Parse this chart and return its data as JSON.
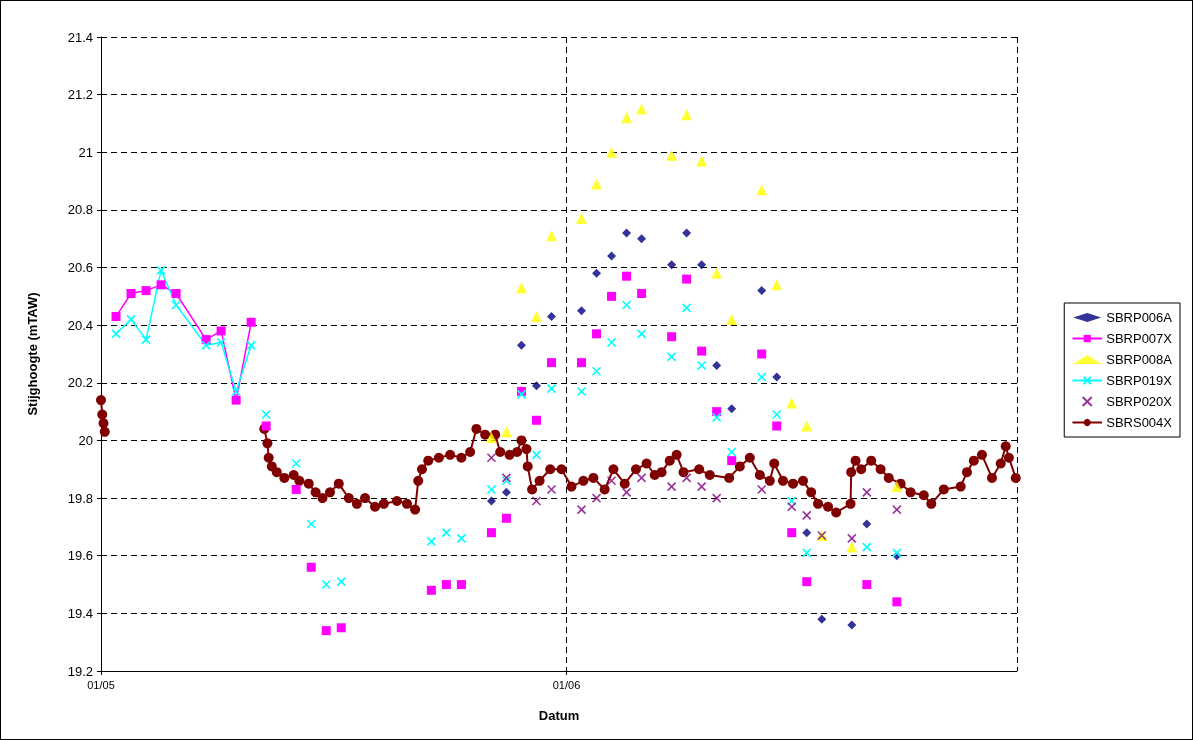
{
  "chart_data": {
    "type": "line",
    "xlabel": "Datum",
    "ylabel": "Stijghoogte (mTAW)",
    "xlim": [
      "--05-01",
      "--07-01"
    ],
    "xticks": [
      {
        "value": "--05-01",
        "label": "01/05"
      },
      {
        "value": "--06-01",
        "label": "01/06"
      }
    ],
    "ylim": [
      19.2,
      21.4
    ],
    "yticks": [
      19.2,
      19.4,
      19.6,
      19.8,
      20,
      20.2,
      20.4,
      20.6,
      20.8,
      21,
      21.2,
      21.4
    ],
    "grid": true,
    "legend": "right",
    "series": [
      {
        "name": "SBRP006A",
        "type": "scatter",
        "marker": "diamond",
        "color": "#000080",
        "x": [
          "--05-27",
          "--05-28",
          "--05-29",
          "--05-30",
          "--05-31",
          "--06-02",
          "--06-03",
          "--06-04",
          "--06-05",
          "--06-06",
          "--06-08",
          "--06-09",
          "--06-10",
          "--06-11",
          "--06-12",
          "--06-14",
          "--06-15",
          "--06-17",
          "--06-18",
          "--06-20",
          "--06-21",
          "--06-23"
        ],
        "values": [
          19.79,
          19.82,
          20.33,
          20.19,
          20.43,
          20.45,
          20.58,
          20.64,
          20.72,
          20.7,
          20.61,
          20.72,
          20.61,
          20.26,
          20.11,
          20.52,
          20.22,
          19.68,
          19.38,
          19.36,
          19.71,
          19.6
        ]
      },
      {
        "name": "SBRP007X",
        "marker": "square",
        "color": "#ff00ff",
        "x": [
          "--05-02",
          "--05-03",
          "--05-04",
          "--05-05",
          "--05-06",
          "--05-08",
          "--05-09",
          "--05-10",
          "--05-11",
          "--05-11T12:00",
          "--05-12",
          "--05-13",
          "--05-14",
          "--05-14T12:00",
          "--05-15",
          "--05-15T12:00",
          "--05-16",
          "--05-16T12:00",
          "--05-17",
          "--05-20",
          "--05-23",
          "--05-23T12:00",
          "--05-24",
          "--05-24T12:00",
          "--05-25",
          "--05-26",
          "--05-27",
          "--05-27T12:00",
          "--05-28",
          "--05-28T12:00",
          "--05-29",
          "--05-29T12:00",
          "--05-30",
          "--05-30T12:00",
          "--05-31",
          "--06-01",
          "--06-02",
          "--06-02T12:00",
          "--06-03",
          "--06-03T12:00",
          "--06-04",
          "--06-04T12:00",
          "--06-05",
          "--06-05T12:00",
          "--06-06",
          "--06-07",
          "--06-08",
          "--06-08T12:00",
          "--06-09",
          "--06-09T12:00",
          "--06-10",
          "--06-10T12:00",
          "--06-11",
          "--06-11T12:00",
          "--06-12",
          "--06-13",
          "--06-14",
          "--06-14T12:00",
          "--06-15",
          "--06-15T12:00",
          "--06-16",
          "--06-16T12:00",
          "--06-17",
          "--06-19",
          "--06-21",
          "--06-22",
          "--06-23"
        ],
        "values": [
          20.43,
          20.51,
          20.52,
          20.54,
          20.51,
          20.35,
          20.38,
          20.14,
          20.41,
          null,
          20.05,
          null,
          19.83,
          null,
          19.56,
          null,
          19.34,
          null,
          19.35,
          null,
          19.48,
          null,
          19.5,
          null,
          19.5,
          null,
          19.68,
          null,
          19.73,
          null,
          20.17,
          null,
          20.07,
          null,
          20.27,
          null,
          20.27,
          null,
          20.37,
          null,
          20.5,
          null,
          20.57,
          null,
          20.51,
          null,
          20.36,
          null,
          20.56,
          null,
          20.31,
          null,
          20.1,
          null,
          19.93,
          null,
          20.3,
          null,
          20.05,
          null,
          19.68,
          null,
          19.51,
          null,
          19.5,
          null,
          19.44
        ]
      },
      {
        "name": "SBRP008A",
        "type": "scatter",
        "marker": "triangle",
        "color": "#ffff00",
        "x": [
          "--05-27",
          "--05-28",
          "--05-29",
          "--05-30",
          "--05-31",
          "--06-02",
          "--06-03",
          "--06-04",
          "--06-05",
          "--06-06",
          "--06-08",
          "--06-09",
          "--06-10",
          "--06-11",
          "--06-12",
          "--06-14",
          "--06-15",
          "--06-16",
          "--06-17",
          "--06-18",
          "--06-20",
          "--06-23"
        ],
        "values": [
          20.01,
          20.03,
          20.53,
          20.43,
          20.71,
          20.77,
          20.89,
          21.0,
          21.12,
          21.15,
          20.99,
          21.13,
          20.97,
          20.58,
          20.42,
          20.87,
          20.54,
          20.13,
          20.05,
          19.67,
          19.63,
          19.84
        ]
      },
      {
        "name": "SBRP019X",
        "marker": "cross",
        "color": "#00ffff",
        "x": [
          "--05-02",
          "--05-03",
          "--05-04",
          "--05-05",
          "--05-06",
          "--05-08",
          "--05-09",
          "--05-10",
          "--05-11",
          "--05-11T12:00",
          "--05-12",
          "--05-13",
          "--05-14",
          "--05-14T12:00",
          "--05-15",
          "--05-15T12:00",
          "--05-16",
          "--05-16T12:00",
          "--05-17",
          "--05-20",
          "--05-23",
          "--05-23T12:00",
          "--05-24",
          "--05-24T12:00",
          "--05-25",
          "--05-26",
          "--05-27",
          "--05-27T12:00",
          "--05-28",
          "--05-28T12:00",
          "--05-29",
          "--05-29T12:00",
          "--05-30",
          "--05-30T12:00",
          "--05-31",
          "--06-01",
          "--06-02",
          "--06-02T12:00",
          "--06-03",
          "--06-03T12:00",
          "--06-04",
          "--06-04T12:00",
          "--06-05",
          "--06-05T12:00",
          "--06-06",
          "--06-07",
          "--06-08",
          "--06-08T12:00",
          "--06-09",
          "--06-09T12:00",
          "--06-10",
          "--06-10T12:00",
          "--06-11",
          "--06-11T12:00",
          "--06-12",
          "--06-13",
          "--06-14",
          "--06-14T12:00",
          "--06-15",
          "--06-15T12:00",
          "--06-16",
          "--06-16T12:00",
          "--06-17",
          "--06-19",
          "--06-21",
          "--06-22",
          "--06-23"
        ],
        "values": [
          20.37,
          20.42,
          20.35,
          20.59,
          20.47,
          20.33,
          20.34,
          20.17,
          20.33,
          null,
          20.09,
          null,
          19.92,
          null,
          19.71,
          null,
          19.5,
          null,
          19.51,
          null,
          19.65,
          null,
          19.68,
          null,
          19.66,
          null,
          19.83,
          null,
          19.86,
          null,
          20.16,
          null,
          19.95,
          null,
          20.18,
          null,
          20.17,
          null,
          20.24,
          null,
          20.34,
          null,
          20.47,
          null,
          20.37,
          null,
          20.29,
          null,
          20.46,
          null,
          20.26,
          null,
          20.08,
          null,
          19.96,
          null,
          20.22,
          null,
          20.09,
          null,
          19.79,
          null,
          19.61,
          null,
          19.63,
          null,
          19.61
        ]
      },
      {
        "name": "SBRP020X",
        "type": "scatter",
        "marker": "cross",
        "color": "#800080",
        "x": [
          "--05-27",
          "--05-28",
          "--05-30",
          "--05-31",
          "--06-02",
          "--06-03",
          "--06-04",
          "--06-05",
          "--06-06",
          "--06-08",
          "--06-09",
          "--06-10",
          "--06-11",
          "--06-14",
          "--06-16",
          "--06-17",
          "--06-18",
          "--06-20",
          "--06-21",
          "--06-23"
        ],
        "values": [
          19.94,
          19.87,
          19.79,
          19.83,
          19.76,
          19.8,
          19.86,
          19.82,
          19.87,
          19.84,
          19.87,
          19.84,
          19.8,
          19.83,
          19.77,
          19.74,
          19.67,
          19.66,
          19.82,
          19.76
        ]
      },
      {
        "name": "SBRS004X",
        "marker": "circle",
        "color": "#800000",
        "x": [
          "--05-01T00:00",
          "--05-01T02:00",
          "--05-01T04:00",
          "--05-01T06:00",
          "--05-06T00:00",
          "--05-11T21:00",
          "--05-12T02:00",
          "--05-12T04:00",
          "--05-12T09:00",
          "--05-12T17:00",
          "--05-13T05:00",
          "--05-13T20:00",
          "--05-14T05:00",
          "--05-14T20:00",
          "--05-15T07:00",
          "--05-15T18:00",
          "--05-16T06:00",
          "--05-16T20:00",
          "--05-17T12:00",
          "--05-18T01:00",
          "--05-18T14:00",
          "--05-19T06:00",
          "--05-19T20:00",
          "--05-20T17:00",
          "--05-21T09:00",
          "--05-21T22:00",
          "--05-22T03:00",
          "--05-22T09:00",
          "--05-22T19:00",
          "--05-23T12:00",
          "--05-24T06:00",
          "--05-25T00:00",
          "--05-25T14:00",
          "--05-26T00:00",
          "--05-26T14:00",
          "--05-27T06:00",
          "--05-27T14:00",
          "--05-28T05:00",
          "--05-28T17:00",
          "--05-29T00:00",
          "--05-29T08:00",
          "--05-29T10:00",
          "--05-29T17:00",
          "--05-30T05:00",
          "--05-30T22:00",
          "--05-31T16:00",
          "--06-01T08:00",
          "--06-02T03:00",
          "--06-02T19:00",
          "--06-03T13:00",
          "--06-04T03:00",
          "--06-04T21:00",
          "--06-05T15:00",
          "--06-06T08:00",
          "--06-06T21:00",
          "--06-07T08:00",
          "--06-07T21:00",
          "--06-08T08:00",
          "--06-08T19:00",
          "--06-09T20:00",
          "--06-10T13:00",
          "--06-11T20:00",
          "--06-12T13:00",
          "--06-13T05:00",
          "--06-13T21:00",
          "--06-14T13:00",
          "--06-14T20:00",
          "--06-15T10:00",
          "--06-16T02:00",
          "--06-16T18:00",
          "--06-17T07:00",
          "--06-17T18:00",
          "--06-18T10:00",
          "--06-18T23:00",
          "--06-19T22:00",
          "--06-19T23:00",
          "--06-20T06:00",
          "--06-20T15:00",
          "--06-21T07:00",
          "--06-21T22:00",
          "--06-22T11:00",
          "--06-23T06:00",
          "--06-23T22:00",
          "--06-24T19:00",
          "--06-25T07:00",
          "--06-26T03:00",
          "--06-27T06:00",
          "--06-27T16:00",
          "--06-28T03:00",
          "--06-28T16:00",
          "--06-29T08:00",
          "--06-29T22:00",
          "--06-30T06:00",
          "--06-30T11:00",
          "--06-30T22:00"
        ],
        "values": [
          20.14,
          20.09,
          20.06,
          20.03,
          null,
          20.04,
          19.99,
          19.94,
          19.91,
          19.89,
          19.87,
          19.88,
          19.86,
          19.85,
          19.82,
          19.8,
          19.82,
          19.85,
          19.8,
          19.78,
          19.8,
          19.77,
          19.78,
          19.79,
          19.78,
          19.76,
          19.86,
          19.9,
          19.93,
          19.94,
          19.95,
          19.94,
          19.96,
          20.04,
          20.02,
          20.02,
          19.96,
          19.95,
          19.96,
          20.0,
          19.97,
          19.91,
          19.83,
          19.86,
          19.9,
          19.9,
          19.84,
          19.86,
          19.87,
          19.83,
          19.9,
          19.85,
          19.9,
          19.92,
          19.88,
          19.89,
          19.93,
          19.95,
          19.89,
          19.9,
          19.88,
          19.87,
          19.91,
          19.94,
          19.88,
          19.86,
          19.92,
          19.86,
          19.85,
          19.86,
          19.82,
          19.78,
          19.77,
          19.75,
          19.78,
          19.89,
          19.93,
          19.9,
          19.93,
          19.9,
          19.87,
          19.85,
          19.82,
          19.81,
          19.78,
          19.83,
          19.84,
          19.89,
          19.93,
          19.95,
          19.87,
          19.92,
          19.98,
          19.94,
          19.87
        ]
      }
    ]
  }
}
